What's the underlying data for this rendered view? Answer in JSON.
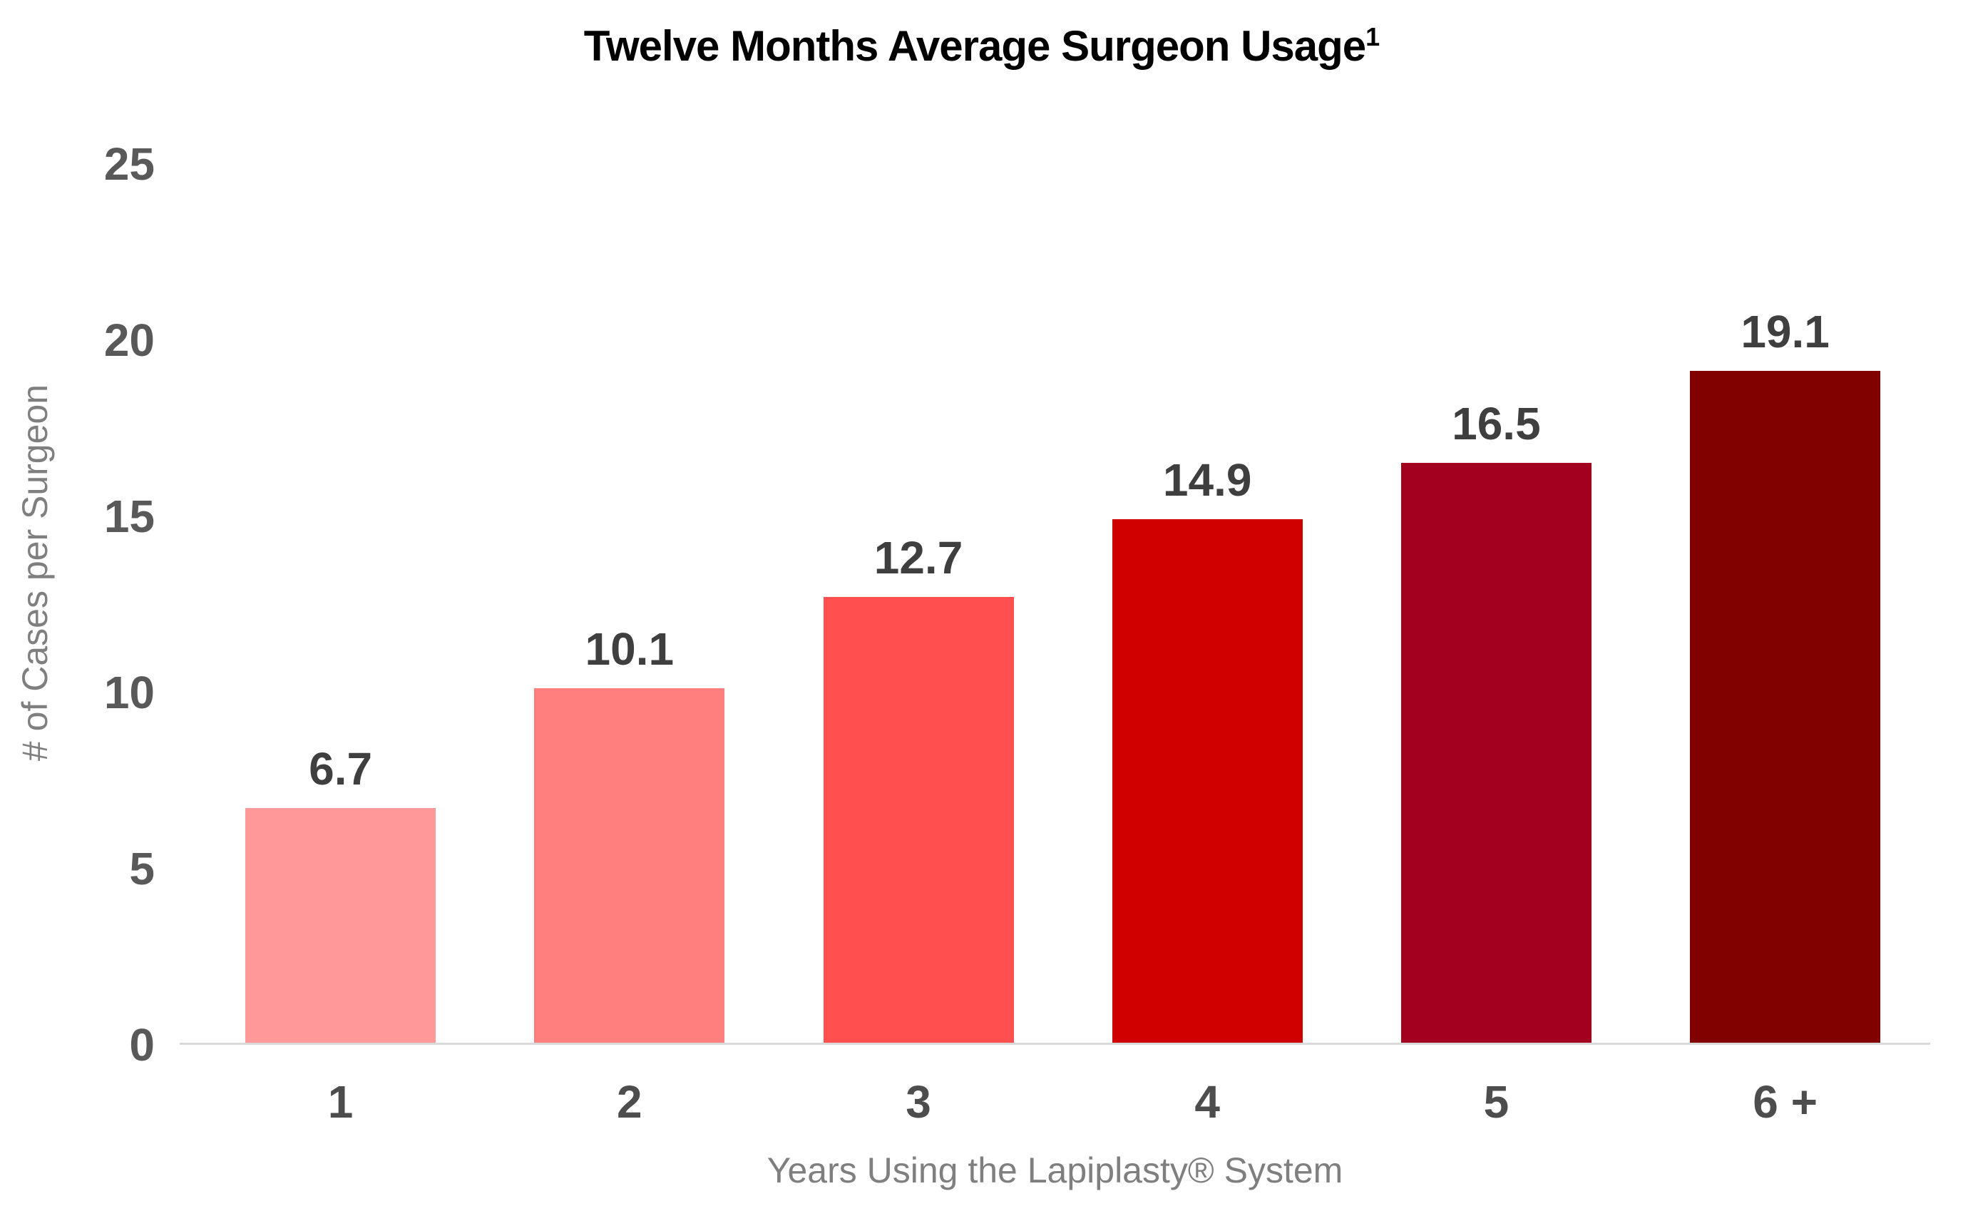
{
  "chart_data": {
    "type": "bar",
    "title": "Twelve Months Average Surgeon Usage",
    "title_superscript": "1",
    "xlabel": "Years Using the Lapiplasty® System",
    "ylabel": "# of Cases per Surgeon",
    "categories": [
      "1",
      "2",
      "3",
      "4",
      "5",
      "6 +"
    ],
    "values": [
      6.7,
      10.1,
      12.7,
      14.9,
      16.5,
      19.1
    ],
    "data_labels": [
      "6.7",
      "10.1",
      "12.7",
      "14.9",
      "16.5",
      "19.1"
    ],
    "bar_colors": [
      "#FF9999",
      "#FF7F7F",
      "#FF4F4F",
      "#CE0000",
      "#A30020",
      "#810000"
    ],
    "y_ticks": [
      0,
      5,
      10,
      15,
      20,
      25
    ],
    "ylim": [
      0,
      25
    ],
    "grid": false,
    "legend": "none",
    "colors": {
      "title": "#000000",
      "axis_line": "#D9D9D9",
      "tick_labels": "#595959",
      "data_labels": "#3F3F3F",
      "category_labels": "#4D4D4D",
      "axis_titles": "#7F7F7F"
    }
  }
}
